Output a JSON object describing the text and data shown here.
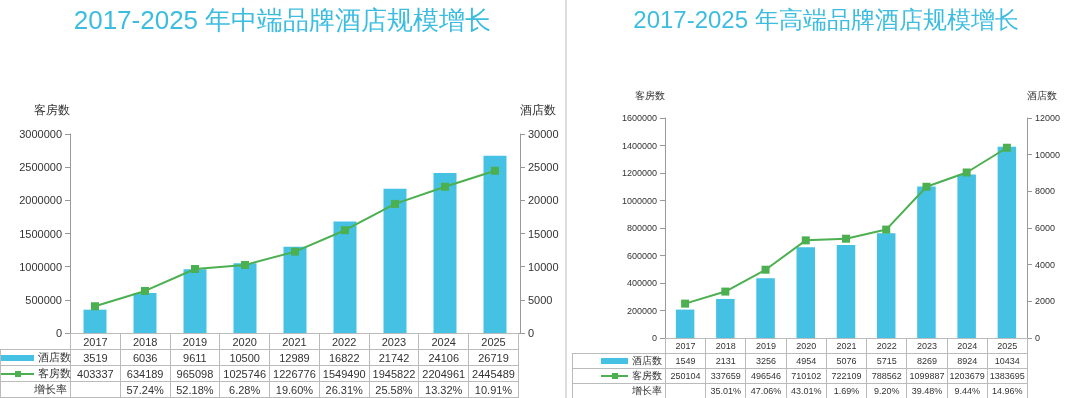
{
  "chart_data": [
    {
      "type": "bar",
      "title": "2017-2025 年中端品牌酒店规模增长",
      "ylabel": "客房数",
      "y2label": "酒店数",
      "categories": [
        "2017",
        "2018",
        "2019",
        "2020",
        "2021",
        "2022",
        "2023",
        "2024",
        "2025"
      ],
      "series": [
        {
          "name": "酒店数",
          "axis": "y2",
          "color": "#45c1e4",
          "values": [
            3519,
            6036,
            9611,
            10500,
            12989,
            16822,
            21742,
            24106,
            26719
          ]
        },
        {
          "name": "客房数",
          "type": "line",
          "axis": "y",
          "color": "#4caf50",
          "values": [
            403337,
            634189,
            965098,
            1025746,
            1226776,
            1549490,
            1945822,
            2204961,
            2445489
          ]
        }
      ],
      "ylim": [
        0,
        3000000
      ],
      "yticks": [
        0,
        500000,
        1000000,
        1500000,
        2000000,
        2500000,
        3000000
      ],
      "y2lim": [
        0,
        30000
      ],
      "y2ticks": [
        0,
        5000,
        10000,
        15000,
        20000,
        25000,
        30000
      ],
      "marker": "square",
      "data_labels": true,
      "legend": "bottom left",
      "annotations": [
        "增长率",
        "57.24%",
        "52.18%",
        "6.28%",
        "19.60%",
        "26.31%",
        "25.58%",
        "13.32%",
        "10.91%"
      ]
    },
    {
      "type": "bar",
      "title": "2017-2025 年高端品牌酒店规模增长",
      "ylabel": "客房数",
      "y2label": "酒店数",
      "categories": [
        "2017",
        "2018",
        "2019",
        "2020",
        "2021",
        "2022",
        "2023",
        "2024",
        "2025"
      ],
      "series": [
        {
          "name": "酒店数",
          "axis": "y2",
          "color": "#45c1e4",
          "values": [
            1549,
            2131,
            3256,
            4954,
            5076,
            5715,
            8269,
            8924,
            10434
          ]
        },
        {
          "name": "客房数",
          "type": "line",
          "axis": "y",
          "color": "#4caf50",
          "values": [
            250104,
            337659,
            496546,
            710102,
            722109,
            788562,
            1099887,
            1203679,
            1383695
          ]
        }
      ],
      "ylim": [
        0,
        1600000
      ],
      "yticks": [
        0,
        200000,
        400000,
        600000,
        800000,
        1000000,
        1200000,
        1400000,
        1600000
      ],
      "y2lim": [
        0,
        12000
      ],
      "y2ticks": [
        0,
        2000,
        4000,
        6000,
        8000,
        10000,
        12000
      ],
      "marker": "square",
      "data_labels": true,
      "legend": "bottom left",
      "annotations": [
        "增长率",
        "35.01%",
        "47.06%",
        "43.01%",
        "1.69%",
        "9.20%",
        "39.48%",
        "9.44%",
        "14.96%"
      ]
    }
  ]
}
